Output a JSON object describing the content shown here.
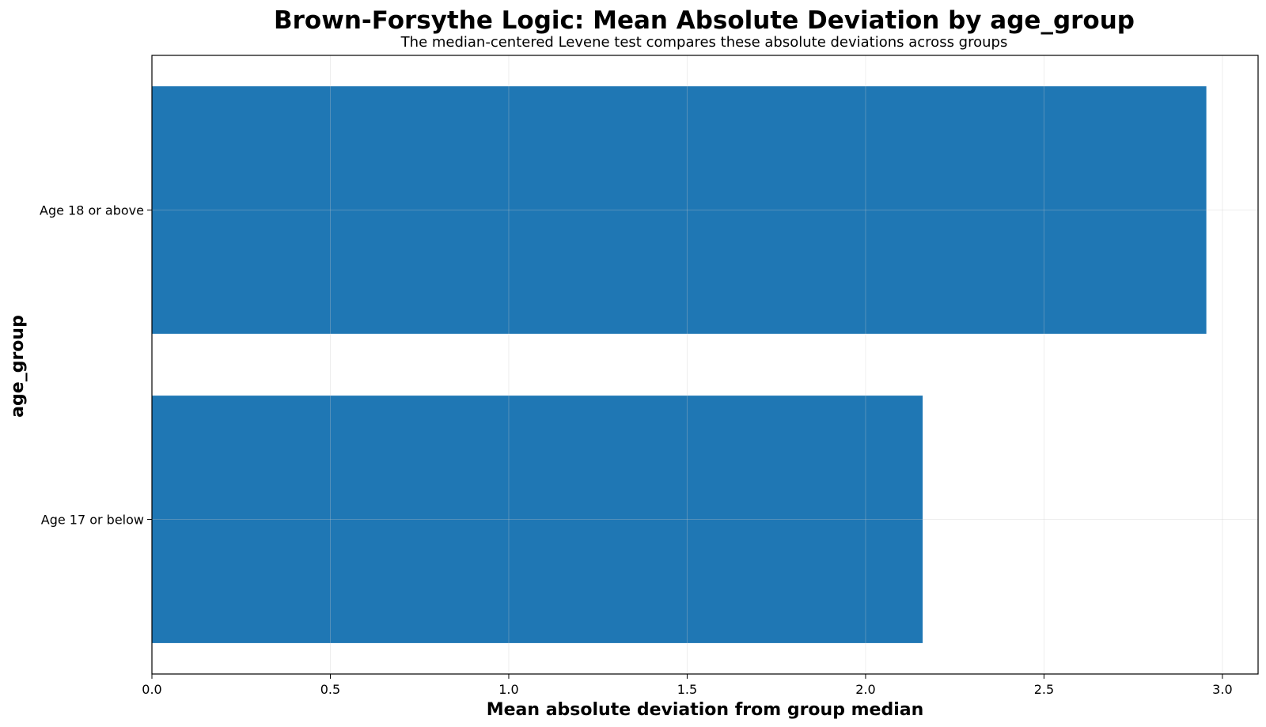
{
  "chart_data": {
    "type": "bar",
    "orientation": "horizontal",
    "title": "Brown-Forsythe Logic: Mean Absolute Deviation by age_group",
    "subtitle": "The median-centered Levene test compares these absolute deviations across groups",
    "xlabel": "Mean absolute deviation from group median",
    "ylabel": "age_group",
    "categories": [
      "Age 17 or below",
      "Age 18 or above"
    ],
    "values": [
      2.16,
      2.955
    ],
    "xlim": [
      0,
      3.1
    ],
    "xticks": [
      "0.0",
      "0.5",
      "1.0",
      "1.5",
      "2.0",
      "2.5",
      "3.0"
    ],
    "grid": true,
    "bar_color": "#1f77b4"
  }
}
